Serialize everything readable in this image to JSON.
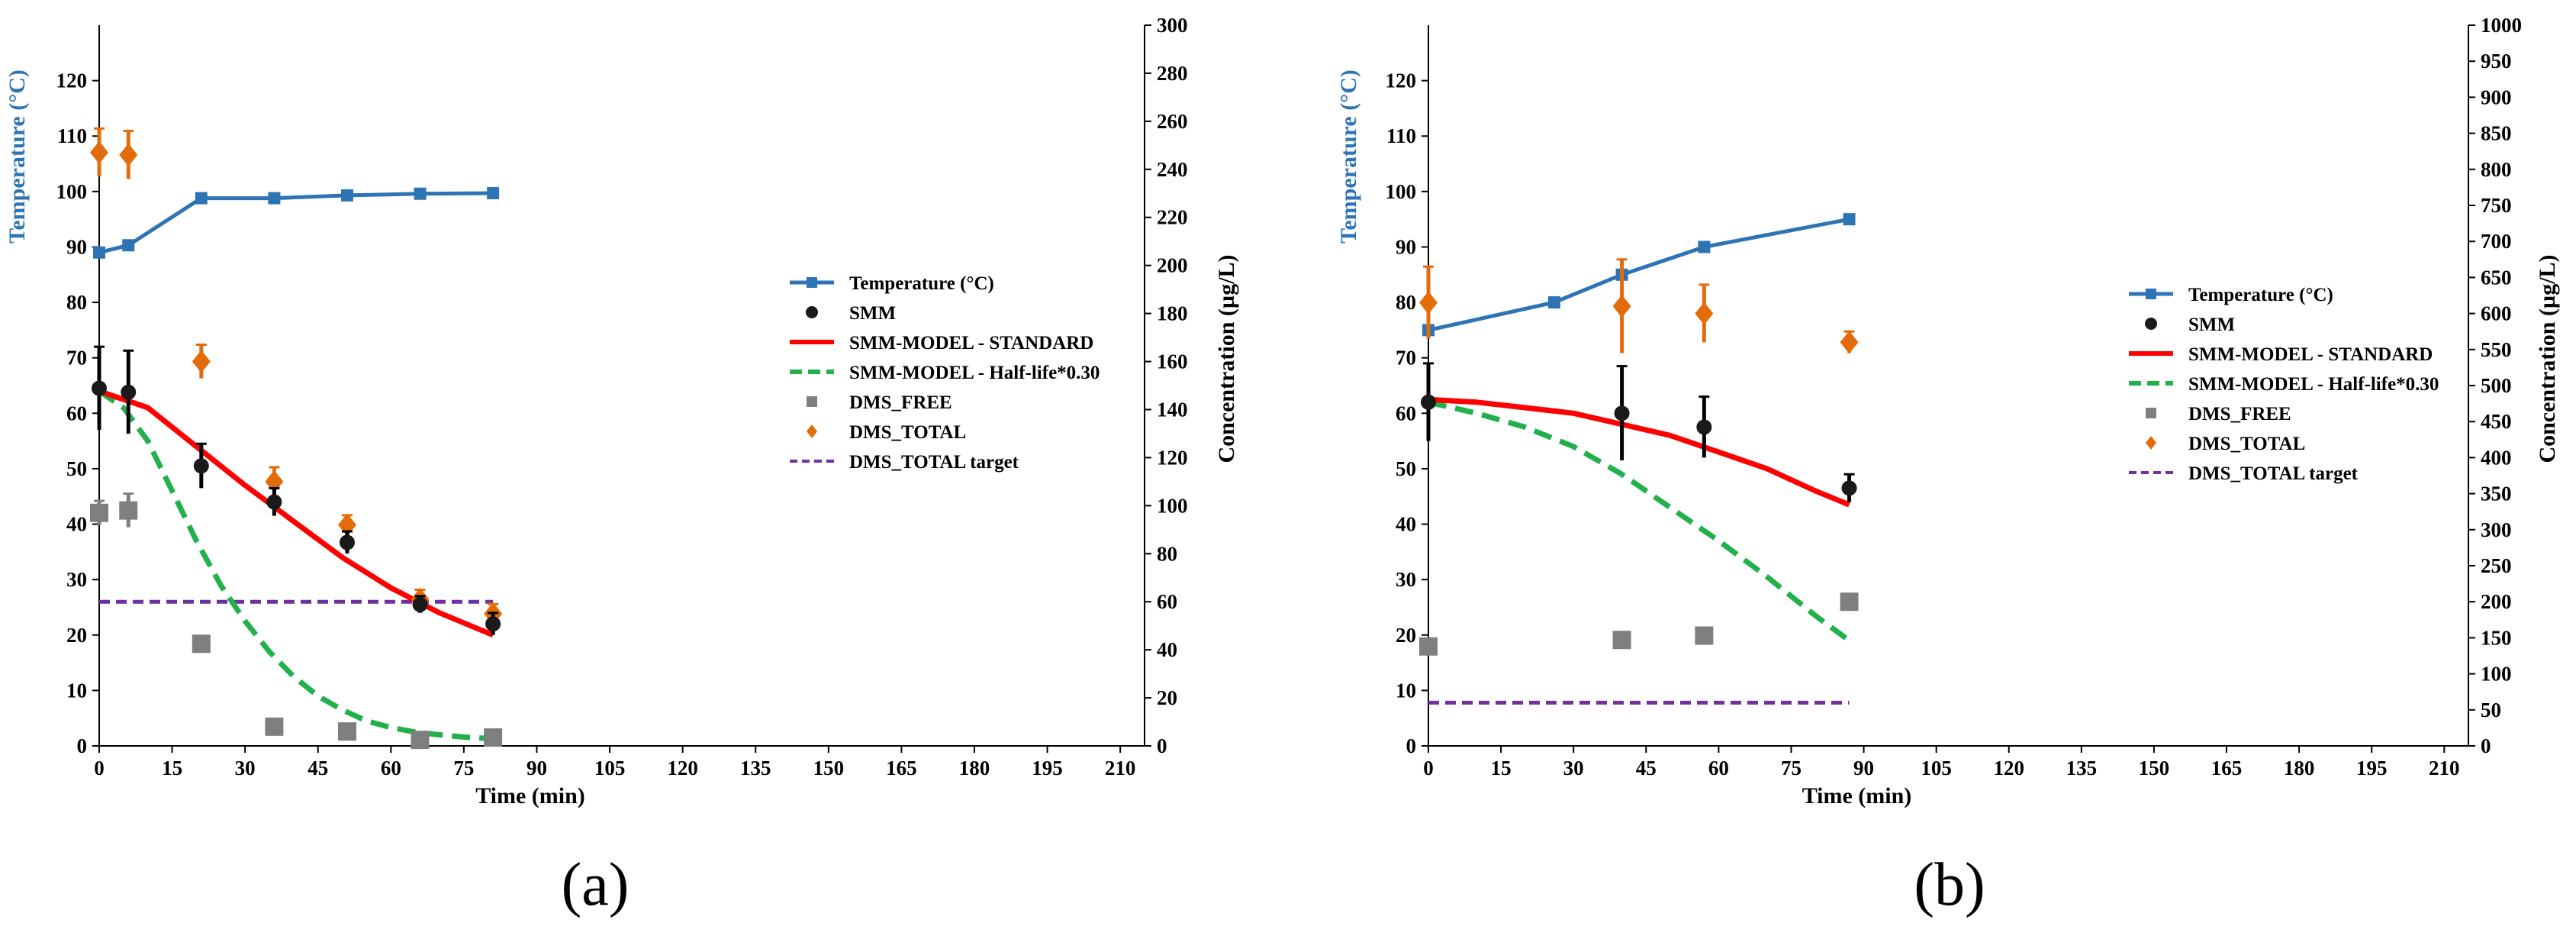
{
  "colors": {
    "temperature": "#2e74b5",
    "smm": "#1a1a1a",
    "model_standard": "#ff0000",
    "model_half": "#22b04b",
    "dms_free": "#7f7f7f",
    "dms_total": "#e36c0a",
    "target": "#7030a0"
  },
  "chart_data": [
    {
      "type": "line",
      "panel_label": "(a)",
      "xlabel": "Time (min)",
      "ylabel_left": "Temperature (°C)",
      "ylabel_right": "Concentration (µg/L)",
      "xlim": [
        0,
        215
      ],
      "ylim_left": [
        0,
        130
      ],
      "ylim_right": [
        0,
        300
      ],
      "x_ticks": [
        "0",
        "15",
        "30",
        "45",
        "60",
        "75",
        "90",
        "105",
        "120",
        "135",
        "150",
        "165",
        "180",
        "195",
        "210"
      ],
      "y_left_ticks": [
        "0",
        "10",
        "20",
        "30",
        "40",
        "50",
        "60",
        "70",
        "80",
        "90",
        "100",
        "110",
        "120"
      ],
      "y_right_ticks": [
        "0",
        "20",
        "40",
        "60",
        "80",
        "100",
        "120",
        "140",
        "160",
        "180",
        "200",
        "220",
        "240",
        "260",
        "280",
        "300"
      ],
      "legend": [
        "Temperature (°C)",
        "SMM",
        "SMM-MODEL - STANDARD",
        "SMM-MODEL - Half-life*0.30",
        "DMS_FREE",
        "DMS_TOTAL",
        "DMS_TOTAL target"
      ],
      "series": [
        {
          "name": "Temperature (°C)",
          "axis": "left",
          "style": "line-marker",
          "x": [
            0,
            6,
            21,
            36,
            51,
            66,
            81
          ],
          "y": [
            89,
            90.3,
            98.8,
            98.8,
            99.3,
            99.6,
            99.7
          ]
        },
        {
          "name": "SMM",
          "axis": "left",
          "style": "points",
          "x": [
            0,
            6,
            21,
            36,
            51,
            66,
            81
          ],
          "y": [
            64.5,
            63.8,
            50.5,
            44,
            36.7,
            25.5,
            22
          ],
          "err": [
            7.5,
            7.5,
            4,
            2.5,
            2,
            1.5,
            2
          ]
        },
        {
          "name": "SMM-MODEL - STANDARD",
          "axis": "left",
          "style": "line",
          "x": [
            0,
            10,
            20,
            30,
            40,
            50,
            60,
            70,
            81
          ],
          "y": [
            64,
            61,
            54,
            47,
            40.5,
            34,
            28.5,
            24,
            20
          ]
        },
        {
          "name": "SMM-MODEL - Half-life*0.30",
          "axis": "left",
          "style": "dashed",
          "x": [
            0,
            5,
            10,
            15,
            20,
            25,
            30,
            35,
            40,
            45,
            50,
            55,
            60,
            65,
            70,
            75,
            81
          ],
          "y": [
            64,
            61,
            55,
            46,
            37,
            29,
            22.5,
            17,
            12.5,
            9,
            6.5,
            4.5,
            3.3,
            2.5,
            2,
            1.6,
            1.3
          ]
        },
        {
          "name": "DMS_FREE",
          "axis": "right",
          "style": "squares",
          "x": [
            0,
            6,
            21,
            36,
            51,
            66,
            81
          ],
          "y": [
            97,
            98,
            42.5,
            8,
            6,
            2.5,
            3.5
          ],
          "err": [
            5,
            7,
            0,
            0,
            0,
            0,
            0
          ]
        },
        {
          "name": "DMS_TOTAL",
          "axis": "right",
          "style": "diamonds",
          "x": [
            0,
            6,
            21,
            36,
            51,
            66,
            81
          ],
          "y": [
            247,
            246,
            160,
            110,
            92,
            61,
            55
          ],
          "err": [
            10,
            10,
            7,
            6,
            4,
            4,
            4
          ]
        },
        {
          "name": "DMS_TOTAL target",
          "axis": "right",
          "style": "target",
          "x": [
            0,
            81
          ],
          "y": [
            60,
            60
          ]
        }
      ]
    },
    {
      "type": "line",
      "panel_label": "(b)",
      "xlabel": "Time (min)",
      "ylabel_left": "Temperature (°C)",
      "ylabel_right": "Concentration (µg/L)",
      "xlim": [
        0,
        215
      ],
      "ylim_left": [
        0,
        130
      ],
      "ylim_right": [
        0,
        1000
      ],
      "x_ticks": [
        "0",
        "15",
        "30",
        "45",
        "60",
        "75",
        "90",
        "105",
        "120",
        "135",
        "150",
        "165",
        "180",
        "195",
        "210"
      ],
      "y_left_ticks": [
        "0",
        "10",
        "20",
        "30",
        "40",
        "50",
        "60",
        "70",
        "80",
        "90",
        "100",
        "110",
        "120"
      ],
      "y_right_ticks": [
        "0",
        "50",
        "100",
        "150",
        "200",
        "250",
        "300",
        "350",
        "400",
        "450",
        "500",
        "550",
        "600",
        "650",
        "700",
        "750",
        "800",
        "850",
        "900",
        "950",
        "1000"
      ],
      "legend": [
        "Temperature (°C)",
        "SMM",
        "SMM-MODEL - STANDARD",
        "SMM-MODEL - Half-life*0.30",
        "DMS_FREE",
        "DMS_TOTAL",
        "DMS_TOTAL target"
      ],
      "series": [
        {
          "name": "Temperature (°C)",
          "axis": "left",
          "style": "line-marker",
          "x": [
            0,
            26,
            40,
            57,
            87
          ],
          "y": [
            75,
            80,
            85,
            90,
            95
          ]
        },
        {
          "name": "SMM",
          "axis": "left",
          "style": "points",
          "x": [
            0,
            40,
            57,
            87
          ],
          "y": [
            62,
            60,
            57.5,
            46.5
          ],
          "err": [
            7,
            8.5,
            5.5,
            2.5
          ]
        },
        {
          "name": "SMM-MODEL - STANDARD",
          "axis": "left",
          "style": "line",
          "x": [
            0,
            10,
            20,
            30,
            40,
            50,
            60,
            70,
            80,
            87
          ],
          "y": [
            62.5,
            62,
            61,
            60,
            58,
            56,
            53,
            50,
            46,
            43.5
          ]
        },
        {
          "name": "SMM-MODEL - Half-life*0.30",
          "axis": "left",
          "style": "dashed",
          "x": [
            0,
            10,
            20,
            30,
            40,
            50,
            60,
            70,
            80,
            87
          ],
          "y": [
            62,
            60,
            57.5,
            54,
            49,
            43,
            37,
            30.5,
            23.5,
            19
          ]
        },
        {
          "name": "DMS_FREE",
          "axis": "right",
          "style": "squares",
          "x": [
            0,
            40,
            57,
            87
          ],
          "y": [
            138,
            147,
            153,
            200
          ],
          "err": [
            0,
            0,
            0,
            8
          ]
        },
        {
          "name": "DMS_TOTAL",
          "axis": "right",
          "style": "diamonds",
          "x": [
            0,
            40,
            57,
            87
          ],
          "y": [
            615,
            610,
            600,
            560
          ],
          "err": [
            50,
            65,
            40,
            15
          ]
        },
        {
          "name": "DMS_TOTAL target",
          "axis": "right",
          "style": "target",
          "x": [
            0,
            87
          ],
          "y": [
            60,
            60
          ]
        }
      ]
    }
  ]
}
